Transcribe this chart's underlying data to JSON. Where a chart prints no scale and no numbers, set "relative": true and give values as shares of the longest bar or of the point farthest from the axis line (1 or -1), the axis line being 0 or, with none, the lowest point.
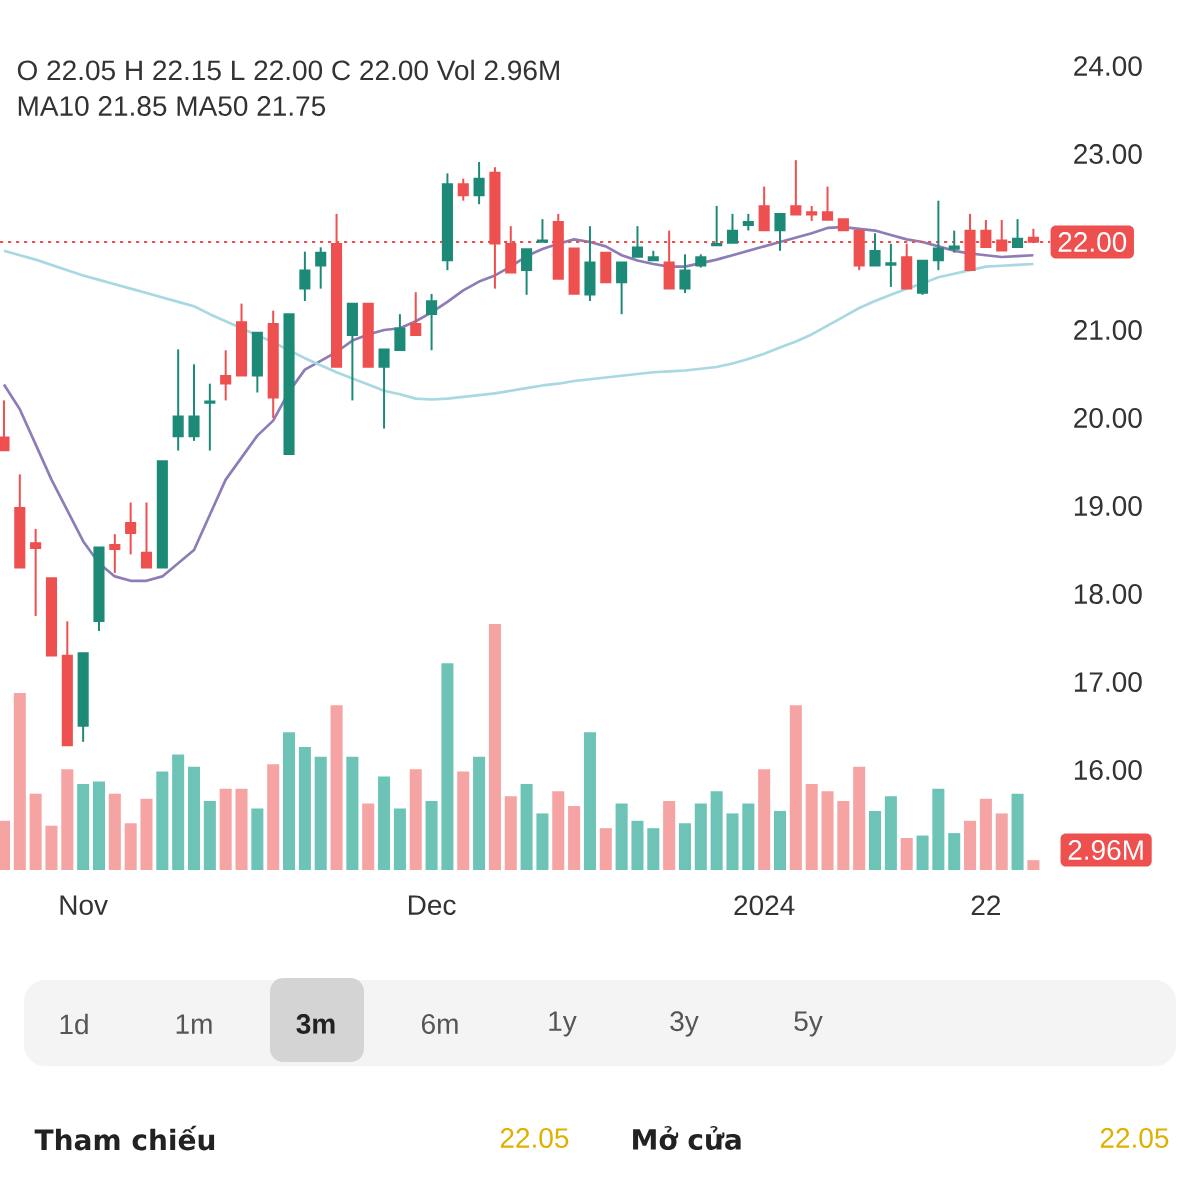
{
  "chart_data": [
    {
      "type": "candlestick",
      "categories": [
        null,
        null,
        null,
        null,
        null,
        "Nov",
        null,
        null,
        null,
        null,
        null,
        null,
        null,
        null,
        null,
        null,
        null,
        null,
        null,
        null,
        null,
        null,
        null,
        null,
        null,
        null,
        null,
        "Dec",
        null,
        null,
        null,
        null,
        null,
        null,
        null,
        null,
        null,
        null,
        null,
        null,
        null,
        null,
        null,
        null,
        null,
        null,
        null,
        null,
        "2024",
        null,
        null,
        null,
        null,
        null,
        null,
        null,
        null,
        null,
        null,
        null,
        null,
        null,
        "22",
        null,
        null,
        null
      ],
      "ohlc": [
        [
          19.78,
          20.2,
          19.63,
          19.63
        ],
        [
          18.98,
          19.36,
          18.3,
          18.3
        ],
        [
          18.58,
          18.74,
          17.75,
          18.52
        ],
        [
          18.18,
          18.18,
          17.3,
          17.3
        ],
        [
          17.3,
          17.69,
          16.28,
          16.28
        ],
        [
          16.5,
          17.33,
          16.32,
          17.33
        ],
        [
          17.69,
          18.53,
          17.58,
          18.53
        ],
        [
          18.56,
          18.68,
          18.24,
          18.51
        ],
        [
          18.81,
          19.04,
          18.45,
          18.69
        ],
        [
          18.47,
          19.04,
          18.3,
          18.3
        ],
        [
          18.3,
          19.51,
          18.3,
          19.51
        ],
        [
          19.79,
          20.78,
          19.63,
          20.02
        ],
        [
          19.79,
          20.61,
          19.74,
          20.02
        ],
        [
          20.17,
          20.39,
          19.63,
          20.19
        ],
        [
          20.48,
          20.77,
          20.2,
          20.39
        ],
        [
          21.09,
          21.3,
          20.48,
          20.48
        ],
        [
          20.48,
          20.97,
          20.29,
          20.97
        ],
        [
          21.07,
          21.22,
          20.0,
          20.23
        ],
        [
          19.59,
          21.18,
          19.59,
          21.18
        ],
        [
          21.47,
          21.89,
          21.33,
          21.68
        ],
        [
          21.73,
          21.94,
          21.47,
          21.88
        ],
        [
          21.98,
          22.32,
          20.58,
          20.58
        ],
        [
          20.94,
          21.3,
          20.2,
          21.3
        ],
        [
          21.3,
          21.3,
          20.58,
          20.58
        ],
        [
          20.58,
          20.78,
          19.88,
          20.78
        ],
        [
          20.77,
          21.18,
          20.77,
          21.02
        ],
        [
          21.07,
          21.43,
          20.94,
          20.94
        ],
        [
          21.18,
          21.41,
          20.77,
          21.33
        ],
        [
          21.79,
          22.78,
          21.68,
          22.66
        ],
        [
          22.66,
          22.72,
          22.47,
          22.53
        ],
        [
          22.53,
          22.91,
          22.43,
          22.72
        ],
        [
          22.79,
          22.85,
          21.47,
          21.98
        ],
        [
          21.98,
          22.18,
          21.65,
          21.65
        ],
        [
          21.68,
          21.92,
          21.4,
          21.92
        ],
        [
          22.0,
          22.26,
          22.0,
          22.02
        ],
        [
          22.23,
          22.32,
          21.58,
          21.58
        ],
        [
          21.93,
          21.93,
          21.41,
          21.41
        ],
        [
          21.4,
          22.18,
          21.33,
          21.77
        ],
        [
          21.88,
          21.88,
          21.54,
          21.54
        ],
        [
          21.54,
          21.77,
          21.18,
          21.77
        ],
        [
          21.83,
          22.18,
          21.83,
          21.94
        ],
        [
          21.79,
          21.9,
          21.79,
          21.83
        ],
        [
          21.77,
          22.13,
          21.47,
          21.47
        ],
        [
          21.47,
          21.86,
          21.42,
          21.68
        ],
        [
          21.73,
          21.86,
          21.71,
          21.83
        ],
        [
          21.96,
          22.41,
          21.96,
          21.98
        ],
        [
          21.99,
          22.32,
          21.99,
          22.13
        ],
        [
          22.19,
          22.32,
          22.13,
          22.23
        ],
        [
          22.41,
          22.63,
          22.13,
          22.13
        ],
        [
          22.13,
          22.32,
          21.9,
          22.32
        ],
        [
          22.41,
          22.93,
          22.31,
          22.31
        ],
        [
          22.34,
          22.41,
          22.24,
          22.31
        ],
        [
          22.34,
          22.63,
          22.25,
          22.25
        ],
        [
          22.26,
          22.26,
          22.13,
          22.13
        ],
        [
          22.13,
          22.13,
          21.68,
          21.73
        ],
        [
          21.73,
          22.1,
          21.73,
          21.9
        ],
        [
          21.74,
          21.98,
          21.49,
          21.76
        ],
        [
          21.83,
          21.98,
          21.47,
          21.47
        ],
        [
          21.42,
          21.79,
          21.4,
          21.79
        ],
        [
          21.79,
          22.47,
          21.68,
          21.93
        ],
        [
          21.92,
          22.13,
          21.88,
          21.95
        ],
        [
          22.13,
          22.32,
          21.68,
          21.68
        ],
        [
          22.13,
          22.25,
          21.94,
          21.94
        ],
        [
          22.02,
          22.25,
          21.9,
          21.9
        ],
        [
          21.94,
          22.26,
          21.94,
          22.04
        ],
        [
          22.05,
          22.15,
          22.0,
          22.0
        ]
      ],
      "colors": [
        "#ee4f4f",
        "#ee4f4f",
        "#ee4f4f",
        "#ee4f4f",
        "#ee4f4f",
        "#1d8a78",
        "#1d8a78",
        "#ee4f4f",
        "#ee4f4f",
        "#ee4f4f",
        "#1d8a78",
        "#1d8a78",
        "#1d8a78",
        "#1d8a78",
        "#ee4f4f",
        "#ee4f4f",
        "#1d8a78",
        "#ee4f4f",
        "#1d8a78",
        "#1d8a78",
        "#1d8a78",
        "#ee4f4f",
        "#1d8a78",
        "#ee4f4f",
        "#1d8a78",
        "#1d8a78",
        "#ee4f4f",
        "#1d8a78",
        "#1d8a78",
        "#ee4f4f",
        "#1d8a78",
        "#ee4f4f",
        "#ee4f4f",
        "#1d8a78",
        "#1d8a78",
        "#ee4f4f",
        "#ee4f4f",
        "#1d8a78",
        "#ee4f4f",
        "#1d8a78",
        "#1d8a78",
        "#1d8a78",
        "#ee4f4f",
        "#1d8a78",
        "#1d8a78",
        "#1d8a78",
        "#1d8a78",
        "#1d8a78",
        "#ee4f4f",
        "#1d8a78",
        "#ee4f4f",
        "#ee4f4f",
        "#ee4f4f",
        "#ee4f4f",
        "#ee4f4f",
        "#1d8a78",
        "#1d8a78",
        "#ee4f4f",
        "#1d8a78",
        "#1d8a78",
        "#1d8a78",
        "#ee4f4f",
        "#ee4f4f",
        "#ee4f4f",
        "#1d8a78",
        "#ee4f4f"
      ],
      "series": [
        {
          "type": "line",
          "color": "#8e7cb8",
          "values": [
            20.38,
            20.1,
            19.7,
            19.3,
            18.95,
            18.6,
            18.35,
            18.2,
            18.15,
            18.15,
            18.2,
            18.35,
            18.5,
            18.9,
            19.3,
            19.55,
            19.8,
            19.97,
            20.3,
            20.55,
            20.65,
            20.75,
            20.88,
            20.95,
            21.0,
            21.02,
            21.1,
            21.2,
            21.32,
            21.45,
            21.55,
            21.62,
            21.72,
            21.84,
            21.92,
            21.98,
            22.03,
            22.0,
            21.95,
            21.85,
            21.79,
            21.75,
            21.72,
            21.72,
            21.76,
            21.8,
            21.85,
            21.9,
            21.95,
            22.0,
            22.05,
            22.1,
            22.16,
            22.17,
            22.15,
            22.13,
            22.08,
            22.03,
            22.0,
            21.95,
            21.9,
            21.87,
            21.85,
            21.83,
            21.84,
            21.85
          ]
        },
        {
          "type": "line",
          "color": "#a8d8e2",
          "values": [
            21.9,
            21.85,
            21.8,
            21.74,
            21.68,
            21.62,
            21.57,
            21.52,
            21.47,
            21.42,
            21.37,
            21.32,
            21.27,
            21.18,
            21.1,
            21.02,
            20.94,
            20.86,
            20.77,
            20.68,
            20.6,
            20.52,
            20.45,
            20.38,
            20.31,
            20.27,
            20.22,
            20.21,
            20.22,
            20.24,
            20.26,
            20.28,
            20.31,
            20.34,
            20.37,
            20.39,
            20.42,
            20.44,
            20.46,
            20.48,
            20.5,
            20.52,
            20.53,
            20.54,
            20.56,
            20.58,
            20.62,
            20.67,
            20.73,
            20.8,
            20.87,
            20.95,
            21.05,
            21.15,
            21.25,
            21.33,
            21.4,
            21.47,
            21.53,
            21.6,
            21.64,
            21.68,
            21.72,
            21.73,
            21.74,
            21.75
          ]
        }
      ],
      "ylim": [
        16,
        24
      ],
      "yticks": [
        {
          "value": 16,
          "label": "16.00"
        },
        {
          "value": 17,
          "label": "17.00"
        },
        {
          "value": 18,
          "label": "18.00"
        },
        {
          "value": 19,
          "label": "19.00"
        },
        {
          "value": 20,
          "label": "20.00"
        },
        {
          "value": 21,
          "label": "21.00"
        },
        {
          "value": 23,
          "label": "23.00"
        },
        {
          "value": 24,
          "label": "24.00"
        }
      ],
      "ref_lines": [
        {
          "axis": "y",
          "value": 22.0,
          "label": "22.00",
          "color": "#ee4f4f",
          "line_style": "dotted"
        }
      ],
      "annotations": [
        "O 22.05 H 22.15 L 22.00 C 22.00 Vol 2.96M",
        "MA10 21.85 MA50 21.75",
        "1d",
        "1m",
        "3m",
        "6m",
        "1y",
        "3y",
        "5y",
        "Tham chiếu",
        "22.05",
        "Mở cửa",
        "22.05"
      ]
    },
    {
      "type": "bar",
      "relative": true,
      "categories": [
        null,
        null,
        null,
        null,
        null,
        null,
        null,
        null,
        null,
        null,
        null,
        null,
        null,
        null,
        null,
        null,
        null,
        null,
        null,
        null,
        null,
        null,
        null,
        null,
        null,
        null,
        null,
        null,
        null,
        null,
        null,
        null,
        null,
        null,
        null,
        null,
        null,
        null,
        null,
        null,
        null,
        null,
        null,
        null,
        null,
        null,
        null,
        null,
        null,
        null,
        null,
        null,
        null,
        null,
        null,
        null,
        null,
        null,
        null,
        null,
        null,
        null,
        null,
        null,
        null,
        null
      ],
      "values": [
        0.2,
        0.72,
        0.31,
        0.18,
        0.41,
        0.35,
        0.36,
        0.31,
        0.19,
        0.29,
        0.4,
        0.47,
        0.42,
        0.28,
        0.33,
        0.33,
        0.25,
        0.43,
        0.56,
        0.5,
        0.46,
        0.67,
        0.46,
        0.27,
        0.38,
        0.25,
        0.41,
        0.28,
        0.84,
        0.4,
        0.46,
        1,
        0.3,
        0.35,
        0.23,
        0.32,
        0.26,
        0.56,
        0.17,
        0.27,
        0.2,
        0.17,
        0.28,
        0.19,
        0.27,
        0.32,
        0.23,
        0.27,
        0.41,
        0.24,
        0.67,
        0.35,
        0.32,
        0.28,
        0.42,
        0.24,
        0.3,
        0.13,
        0.14,
        0.33,
        0.15,
        0.2,
        0.29,
        0.23,
        0.31,
        0.04
      ],
      "colors": [
        "#f5a3a3",
        "#f5a3a3",
        "#f5a3a3",
        "#f5a3a3",
        "#f5a3a3",
        "#6cc3b6",
        "#6cc3b6",
        "#f5a3a3",
        "#f5a3a3",
        "#f5a3a3",
        "#6cc3b6",
        "#6cc3b6",
        "#6cc3b6",
        "#6cc3b6",
        "#f5a3a3",
        "#f5a3a3",
        "#6cc3b6",
        "#f5a3a3",
        "#6cc3b6",
        "#6cc3b6",
        "#6cc3b6",
        "#f5a3a3",
        "#6cc3b6",
        "#f5a3a3",
        "#6cc3b6",
        "#6cc3b6",
        "#f5a3a3",
        "#6cc3b6",
        "#6cc3b6",
        "#f5a3a3",
        "#6cc3b6",
        "#f5a3a3",
        "#f5a3a3",
        "#6cc3b6",
        "#6cc3b6",
        "#f5a3a3",
        "#f5a3a3",
        "#6cc3b6",
        "#f5a3a3",
        "#6cc3b6",
        "#6cc3b6",
        "#6cc3b6",
        "#f5a3a3",
        "#6cc3b6",
        "#6cc3b6",
        "#6cc3b6",
        "#6cc3b6",
        "#6cc3b6",
        "#f5a3a3",
        "#6cc3b6",
        "#f5a3a3",
        "#f5a3a3",
        "#f5a3a3",
        "#f5a3a3",
        "#f5a3a3",
        "#6cc3b6",
        "#6cc3b6",
        "#f5a3a3",
        "#6cc3b6",
        "#6cc3b6",
        "#6cc3b6",
        "#f5a3a3",
        "#f5a3a3",
        "#f5a3a3",
        "#6cc3b6",
        "#f5a3a3"
      ],
      "annotations": [
        "2.96M"
      ]
    }
  ]
}
